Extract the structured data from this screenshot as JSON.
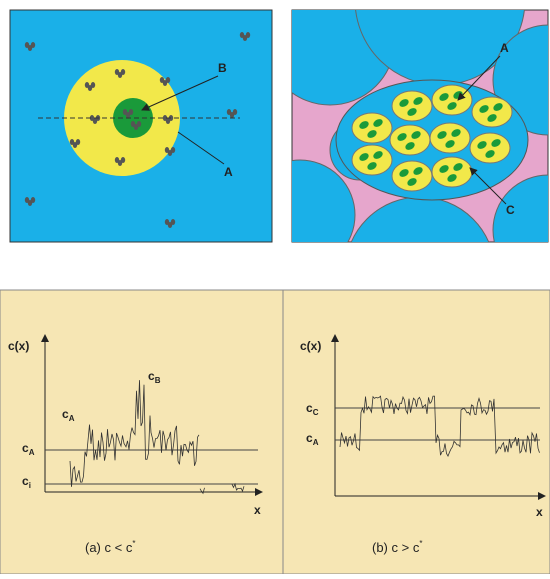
{
  "panel_a": {
    "labels": {
      "b": "B",
      "a": "A"
    }
  },
  "panel_b": {
    "labels": {
      "a": "A",
      "c": "C"
    }
  },
  "plot_a": {
    "y_axis": "c(x)",
    "x_axis": "x",
    "levels": [
      {
        "symbol": "c",
        "sub": "B"
      },
      {
        "symbol": "c",
        "sub": "A"
      },
      {
        "symbol": "c",
        "sub": "A"
      },
      {
        "symbol": "c",
        "sub": "i"
      }
    ],
    "caption": {
      "text": "(a)  c < c",
      "sup": "*"
    }
  },
  "plot_b": {
    "y_axis": "c(x)",
    "x_axis": "x",
    "levels": [
      {
        "symbol": "c",
        "sub": "C"
      },
      {
        "symbol": "c",
        "sub": "A"
      }
    ],
    "caption": {
      "text": "(b)  c > c",
      "sup": "*"
    }
  }
}
